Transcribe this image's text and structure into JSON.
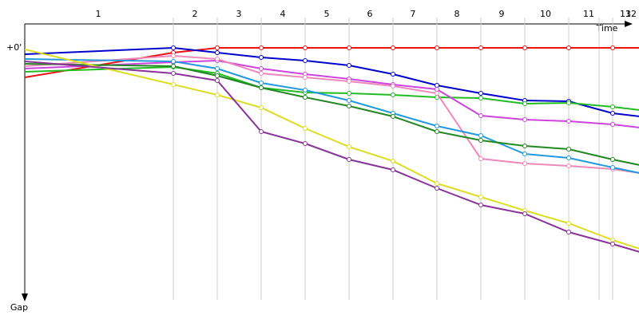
{
  "chart_data": {
    "type": "line",
    "x_axis_title": "Time",
    "y_axis_title": "Gap",
    "zero_label": "+0'",
    "xlim": [
      0,
      770
    ],
    "ylim": [
      0,
      316
    ],
    "lap_labels": [
      {
        "value": 92,
        "label": "1"
      },
      {
        "value": 213,
        "label": "2"
      },
      {
        "value": 268,
        "label": "3"
      },
      {
        "value": 323,
        "label": "4"
      },
      {
        "value": 378,
        "label": "5"
      },
      {
        "value": 432,
        "label": "6"
      },
      {
        "value": 486,
        "label": "7"
      },
      {
        "value": 541,
        "label": "8"
      },
      {
        "value": 597,
        "label": "9"
      },
      {
        "value": 652,
        "label": "10"
      },
      {
        "value": 706,
        "label": "11"
      },
      {
        "value": 759,
        "label": "12"
      },
      {
        "value": 752,
        "label": "13"
      }
    ],
    "lap_lines": [
      186,
      241,
      296,
      351,
      406,
      461,
      516,
      571,
      626,
      681,
      719,
      736
    ],
    "x": [
      0,
      186,
      241,
      296,
      351,
      406,
      461,
      516,
      571,
      626,
      681,
      736,
      770
    ],
    "series": [
      {
        "color": "#ee1111",
        "values": [
          37,
          6,
          0,
          0,
          0,
          0,
          0,
          0,
          0,
          0,
          0,
          0,
          0
        ]
      },
      {
        "color": "#0000cc",
        "values": [
          8,
          0,
          6,
          12,
          16,
          22,
          33,
          47,
          57,
          66,
          67,
          82,
          86
        ]
      },
      {
        "color": "#22bb22",
        "values": [
          30,
          24,
          32,
          50,
          56,
          57,
          59,
          62,
          63,
          70,
          69,
          74,
          78
        ]
      },
      {
        "color": "#cc44dd",
        "values": [
          26,
          18,
          16,
          26,
          33,
          39,
          46,
          52,
          85,
          90,
          92,
          96,
          100
        ]
      },
      {
        "color": "#ee88bb",
        "values": [
          23,
          10,
          14,
          32,
          37,
          42,
          48,
          57,
          139,
          145,
          148,
          152,
          157
        ]
      },
      {
        "color": "#2299dd",
        "values": [
          14,
          17,
          26,
          44,
          53,
          66,
          82,
          98,
          110,
          133,
          138,
          150,
          157
        ]
      },
      {
        "color": "#228822",
        "values": [
          20,
          23,
          35,
          50,
          62,
          73,
          86,
          105,
          116,
          123,
          127,
          140,
          147
        ]
      },
      {
        "color": "#dddd22",
        "values": [
          2,
          46,
          59,
          75,
          101,
          124,
          142,
          170,
          187,
          204,
          220,
          241,
          252
        ]
      },
      {
        "color": "#883399",
        "values": [
          17,
          32,
          41,
          105,
          120,
          140,
          153,
          176,
          197,
          208,
          231,
          246,
          256
        ]
      }
    ]
  }
}
